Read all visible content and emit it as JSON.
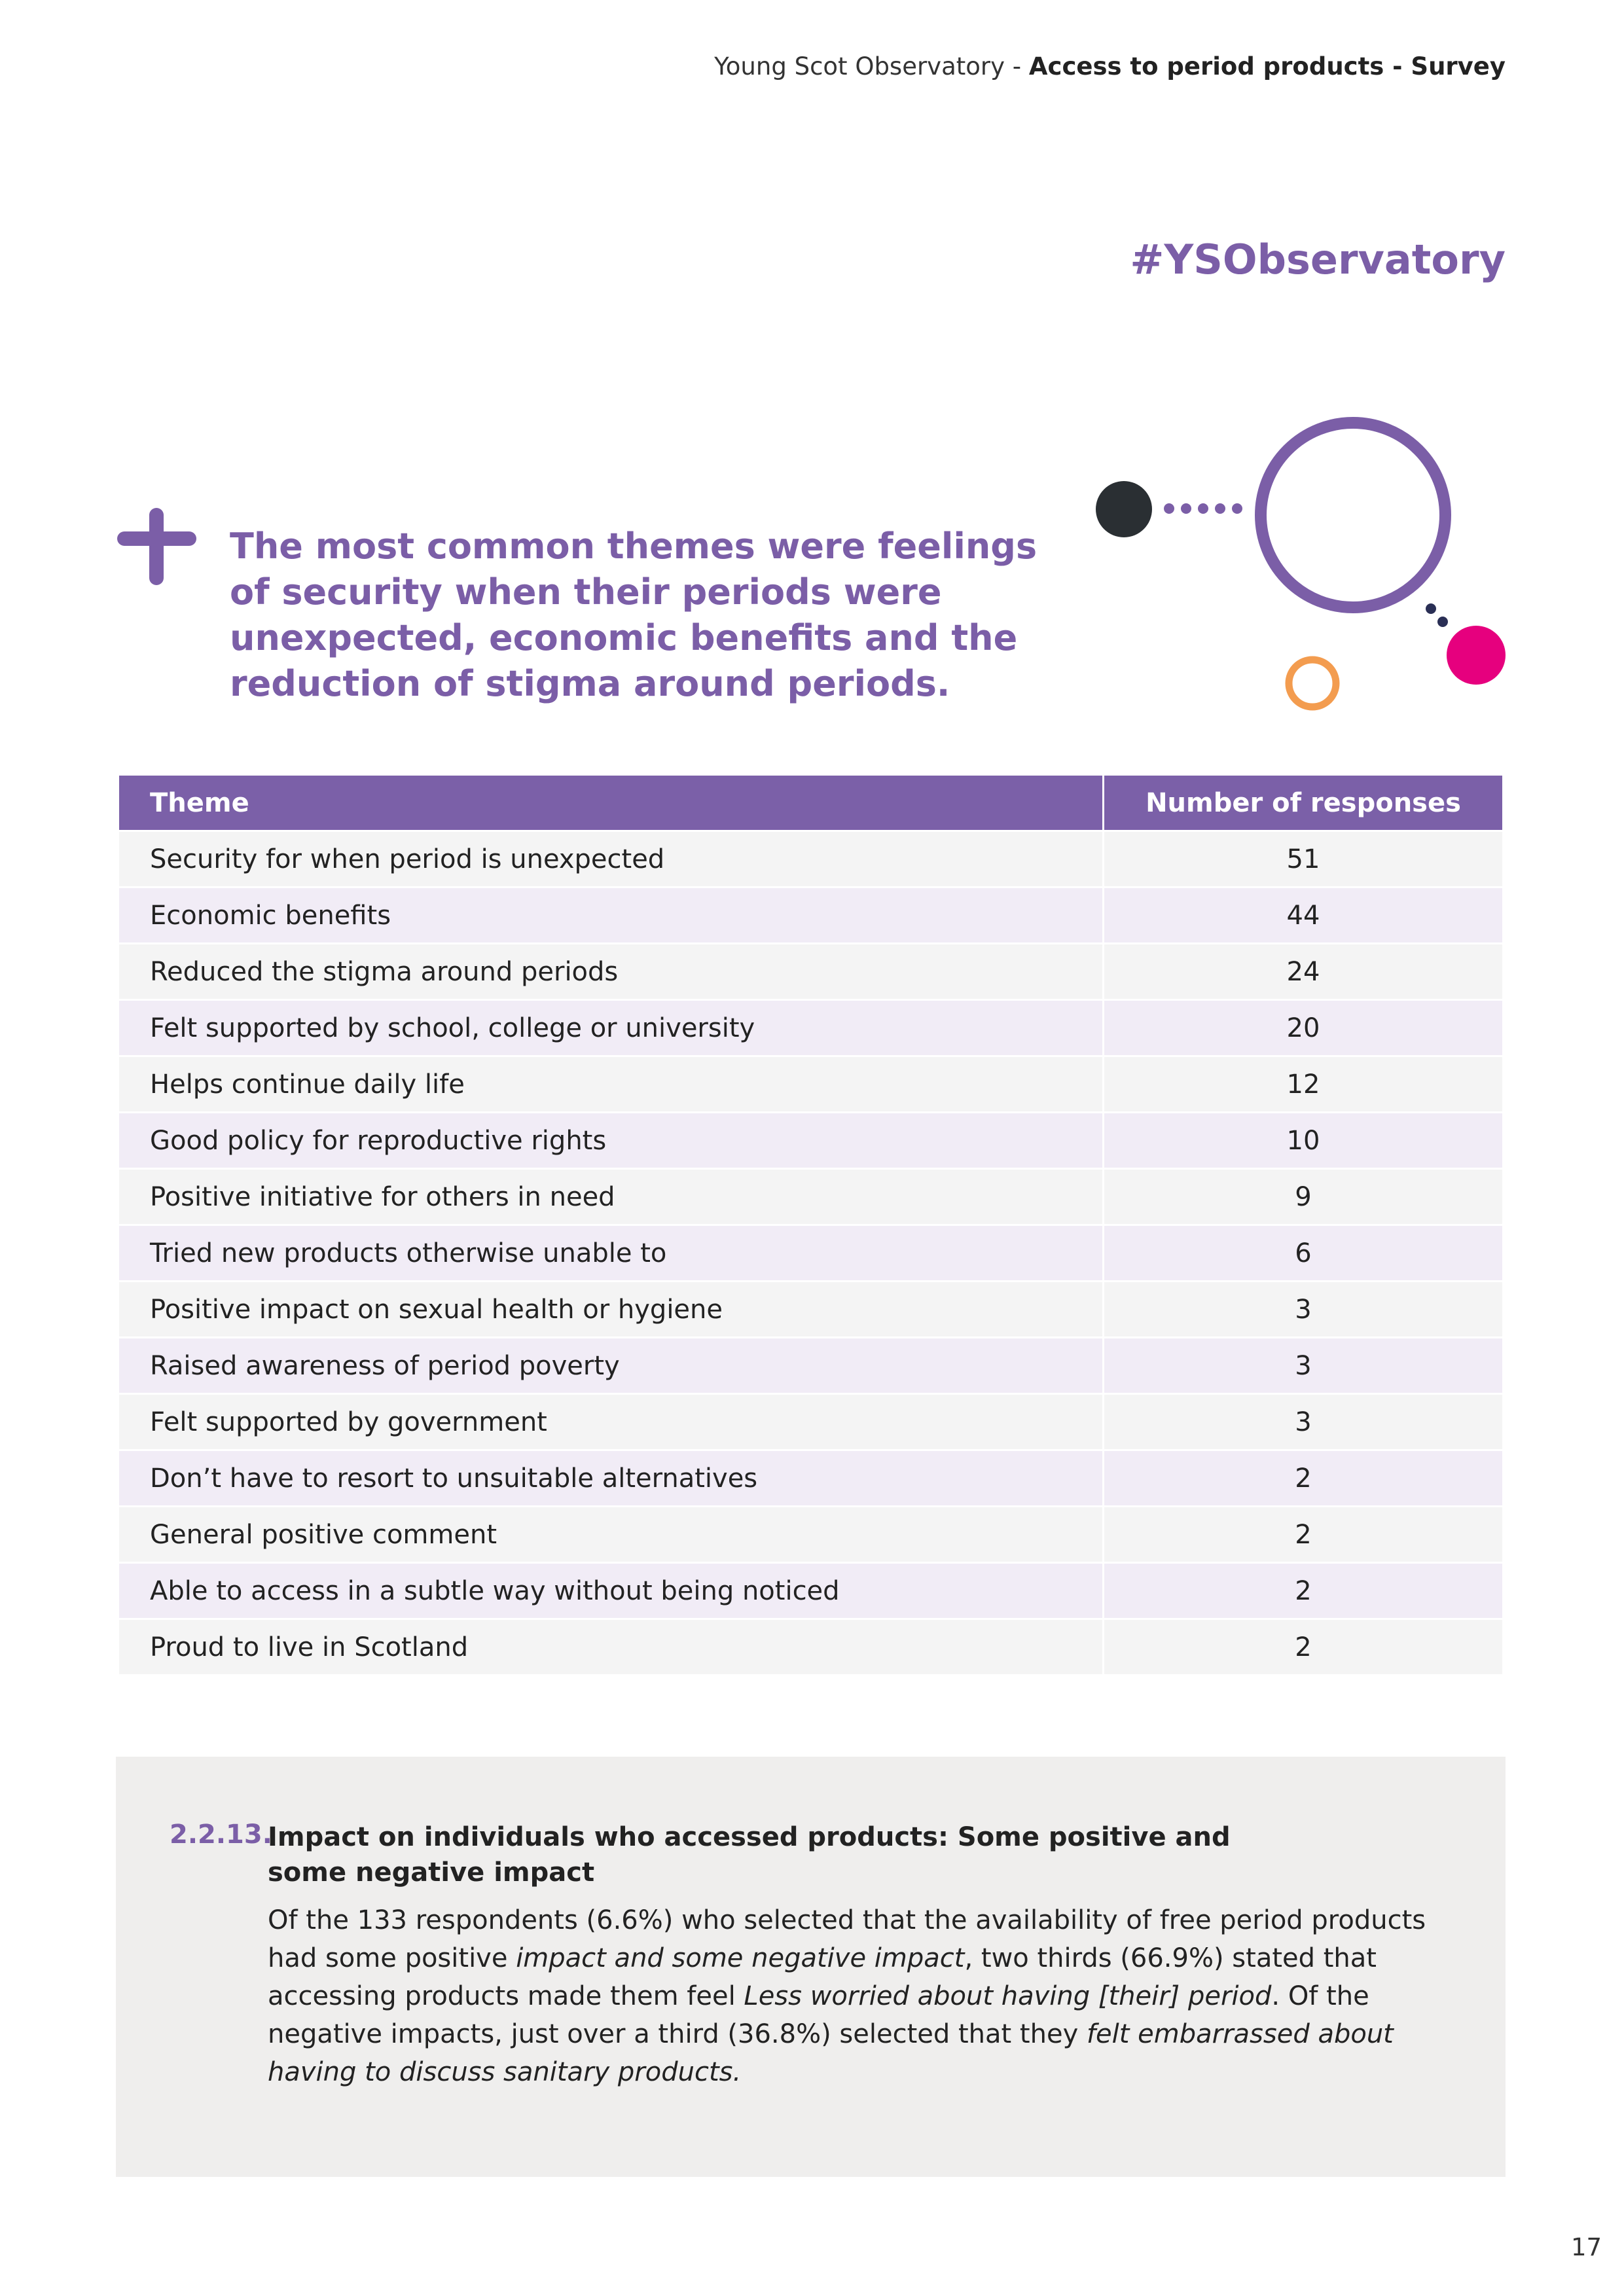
{
  "header": {
    "parts": [
      "Young Scot Observatory - ",
      "Access to period products - Survey"
    ]
  },
  "hashtag": "#YSObservatory",
  "callout": "The most common themes were feelings of security when their periods were unexpected, economic benefits and the reduction of stigma around periods.",
  "table": {
    "columns": [
      "Theme",
      "Number of responses"
    ],
    "rows": [
      [
        "Security for when period is unexpected",
        51
      ],
      [
        "Economic benefits",
        44
      ],
      [
        "Reduced the stigma around periods",
        24
      ],
      [
        "Felt supported by school, college or university",
        20
      ],
      [
        "Helps continue daily life",
        12
      ],
      [
        "Good policy for reproductive rights",
        10
      ],
      [
        "Positive initiative for others in need",
        9
      ],
      [
        "Tried new products otherwise unable to",
        6
      ],
      [
        "Positive impact on sexual health or hygiene",
        3
      ],
      [
        "Raised awareness of period poverty",
        3
      ],
      [
        "Felt supported by government",
        3
      ],
      [
        "Don’t have to resort to unsuitable alternatives",
        2
      ],
      [
        "General positive comment",
        2
      ],
      [
        "Able to access in a subtle way without being noticed",
        2
      ],
      [
        "Proud to live in Scotland",
        2
      ]
    ]
  },
  "section": {
    "number": "2.2.13.",
    "title": "Impact on individuals who accessed products: Some positive and some negative impact",
    "paragraph": [
      "Of the 133 respondents (6.6%) who selected that the availability of free period products had some positive ",
      "impact and some negative impact",
      ", two thirds (66.9%) stated that accessing products made them feel ",
      "Less worried about having [their] period",
      ". Of the negative impacts, just over a third (36.8%) selected that they ",
      "felt embarrassed about having to discuss sanitary products."
    ]
  },
  "page_number": "17"
}
